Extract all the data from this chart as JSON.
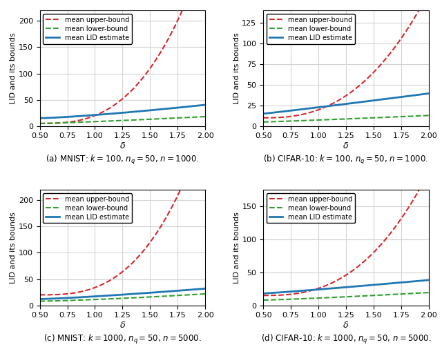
{
  "x_start": 0.5,
  "x_end": 2.0,
  "n_points": 200,
  "plots": [
    {
      "upper_bound_scale": 105,
      "upper_bound_exp": 2.8,
      "lower_bound_scale": 8,
      "lower_bound_exp": 1.2,
      "lid_scale": 15,
      "lid_exp": 1.3,
      "ylim": [
        0,
        220
      ],
      "yticks": [
        0,
        50,
        100,
        150,
        200
      ],
      "caption": "(a) MNIST: $k = 100$, $n_q = 50$, $n = 1000$."
    },
    {
      "upper_bound_scale": 55,
      "upper_bound_exp": 2.5,
      "lower_bound_scale": 5,
      "lower_bound_exp": 1.1,
      "lid_scale": 16,
      "lid_exp": 1.05,
      "ylim": [
        0,
        140
      ],
      "yticks": [
        0,
        25,
        50,
        75,
        100,
        125
      ],
      "caption": "(b) CIFAR-10: $k = 100$, $n_q = 50$, $n = 1000$."
    },
    {
      "upper_bound_scale": 100,
      "upper_bound_exp": 2.85,
      "lower_bound_scale": 8,
      "lower_bound_exp": 1.35,
      "lid_scale": 12,
      "lid_exp": 1.25,
      "ylim": [
        0,
        220
      ],
      "yticks": [
        0,
        50,
        100,
        150,
        200
      ],
      "caption": "(c) MNIST: $k = 1000$, $n_q = 50$, $n = 5000$."
    },
    {
      "upper_bound_scale": 65,
      "upper_bound_exp": 2.6,
      "lower_bound_scale": 7,
      "lower_bound_exp": 1.2,
      "lid_scale": 13,
      "lid_exp": 1.1,
      "ylim": [
        0,
        175
      ],
      "yticks": [
        0,
        50,
        100,
        150
      ],
      "caption": "(d) CIFAR-10: $k = 1000$, $n_q = 50$, $n = 5000$."
    }
  ],
  "upper_color": "#d62728",
  "lower_color": "#2ca02c",
  "lid_color": "#1f77b4",
  "upper_label": "mean upper-bound",
  "lower_label": "mean lower-bound",
  "lid_label": "mean LID estimate",
  "xlabel": "$\\delta$",
  "ylabel": "LID and its bounds",
  "xticks": [
    0.5,
    0.75,
    1.0,
    1.25,
    1.5,
    1.75,
    2.0
  ],
  "xtick_labels": [
    "0.50",
    "0.75",
    "1.00",
    "1.25",
    "1.50",
    "1.75",
    "2.00"
  ]
}
